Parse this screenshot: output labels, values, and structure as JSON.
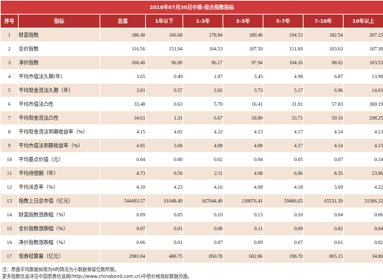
{
  "title": "2018年07月30日中债-综合指数指标",
  "headers": [
    "序号",
    "指标",
    "总值",
    "1年以下",
    "1-3年",
    "3-5年",
    "5-7年",
    "7-10年",
    "10年以上"
  ],
  "rows": [
    {
      "no": "1",
      "name": "财富指数",
      "values": [
        "186.40",
        "166.68",
        "178.84",
        "189.46",
        "194.53",
        "182.54",
        "207.15"
      ]
    },
    {
      "no": "2",
      "name": "全价指数",
      "values": [
        "116.56",
        "151.04",
        "104.53",
        "107.50",
        "111.60",
        "103.63",
        "107.38"
      ]
    },
    {
      "no": "3",
      "name": "净价指数",
      "values": [
        "100.40",
        "96.90",
        "96.17",
        "97.94",
        "104.16",
        "98.02",
        "103.53"
      ]
    },
    {
      "no": "4",
      "name": "平均市值法久期(年)",
      "values": [
        "3.65",
        "0.49",
        "1.87",
        "3.45",
        "4.98",
        "6.87",
        "13.98"
      ]
    },
    {
      "no": "5",
      "name": "平均现金流法久期（年）",
      "values": [
        "3.81",
        "0.57",
        "2.02",
        "3.73",
        "5.17",
        "6.96",
        "14.03"
      ]
    },
    {
      "no": "6",
      "name": "平均市值法凸性",
      "values": [
        "33.48",
        "0.63",
        "5.70",
        "16.41",
        "31.91",
        "57.83",
        "300.19"
      ]
    },
    {
      "no": "7",
      "name": "平均现金流法凸性",
      "values": [
        "34.61",
        "1.31",
        "6.67",
        "18.80",
        "33.71",
        "59.16",
        "298.25"
      ]
    },
    {
      "no": "8",
      "name": "平均现金流法到期收益率（%）",
      "values": [
        "4.15",
        "4.02",
        "4.22",
        "4.13",
        "4.17",
        "4.14",
        "4.13"
      ]
    },
    {
      "no": "9",
      "name": "平均市值法到期收益率（%）",
      "values": [
        "4.05",
        "3.68",
        "4.08",
        "4.08",
        "4.17",
        "4.14",
        "4.15"
      ]
    },
    {
      "no": "10",
      "name": "平均基点价值（元）",
      "values": [
        "0.04",
        "0.00",
        "0.02",
        "0.04",
        "0.05",
        "0.07",
        "0.14"
      ]
    },
    {
      "no": "11",
      "name": "平均待偿期（年）",
      "values": [
        "4.73",
        "0.50",
        "2.11",
        "4.08",
        "6.06",
        "8.35",
        "23.96"
      ]
    },
    {
      "no": "12",
      "name": "平均派息率（%）",
      "values": [
        "4.10",
        "4.23",
        "4.16",
        "4.08",
        "4.18",
        "3.69",
        "4.22"
      ]
    },
    {
      "no": "13",
      "name": "指数上日总市值（亿元）",
      "values": [
        "544493.57",
        "91048.49",
        "167044.40",
        "130076.41",
        "59486.65",
        "65531.39",
        "31306.22"
      ]
    },
    {
      "no": "14",
      "name": "财富指数涨跌幅（%）",
      "values": [
        "0.09",
        "0.05",
        "0.10",
        "0.13",
        "0.10",
        "0.04",
        "0.06"
      ]
    },
    {
      "no": "15",
      "name": "全价指数涨跌幅（%）",
      "values": [
        "0.07",
        "0.01",
        "0.08",
        "0.11",
        "0.09",
        "0.02",
        "0.04"
      ]
    },
    {
      "no": "16",
      "name": "净价指数涨跌幅（%）",
      "values": [
        "0.06",
        "0.01",
        "0.07",
        "0.09",
        "0.07",
        "0.01",
        "0.02"
      ]
    },
    {
      "no": "17",
      "name": "现券结算量（亿元）",
      "values": [
        "2981.04",
        "488.75",
        "850.78",
        "602.86",
        "198.70",
        "805.15",
        "34.80"
      ]
    }
  ],
  "notes": [
    "注：票面平均数据如用为0的情况为小数据保留位数所致。",
    "更多指数信息详见中国债券信息网(http://www.chinabond.com.cn)中债价格指标数据页面。"
  ]
}
